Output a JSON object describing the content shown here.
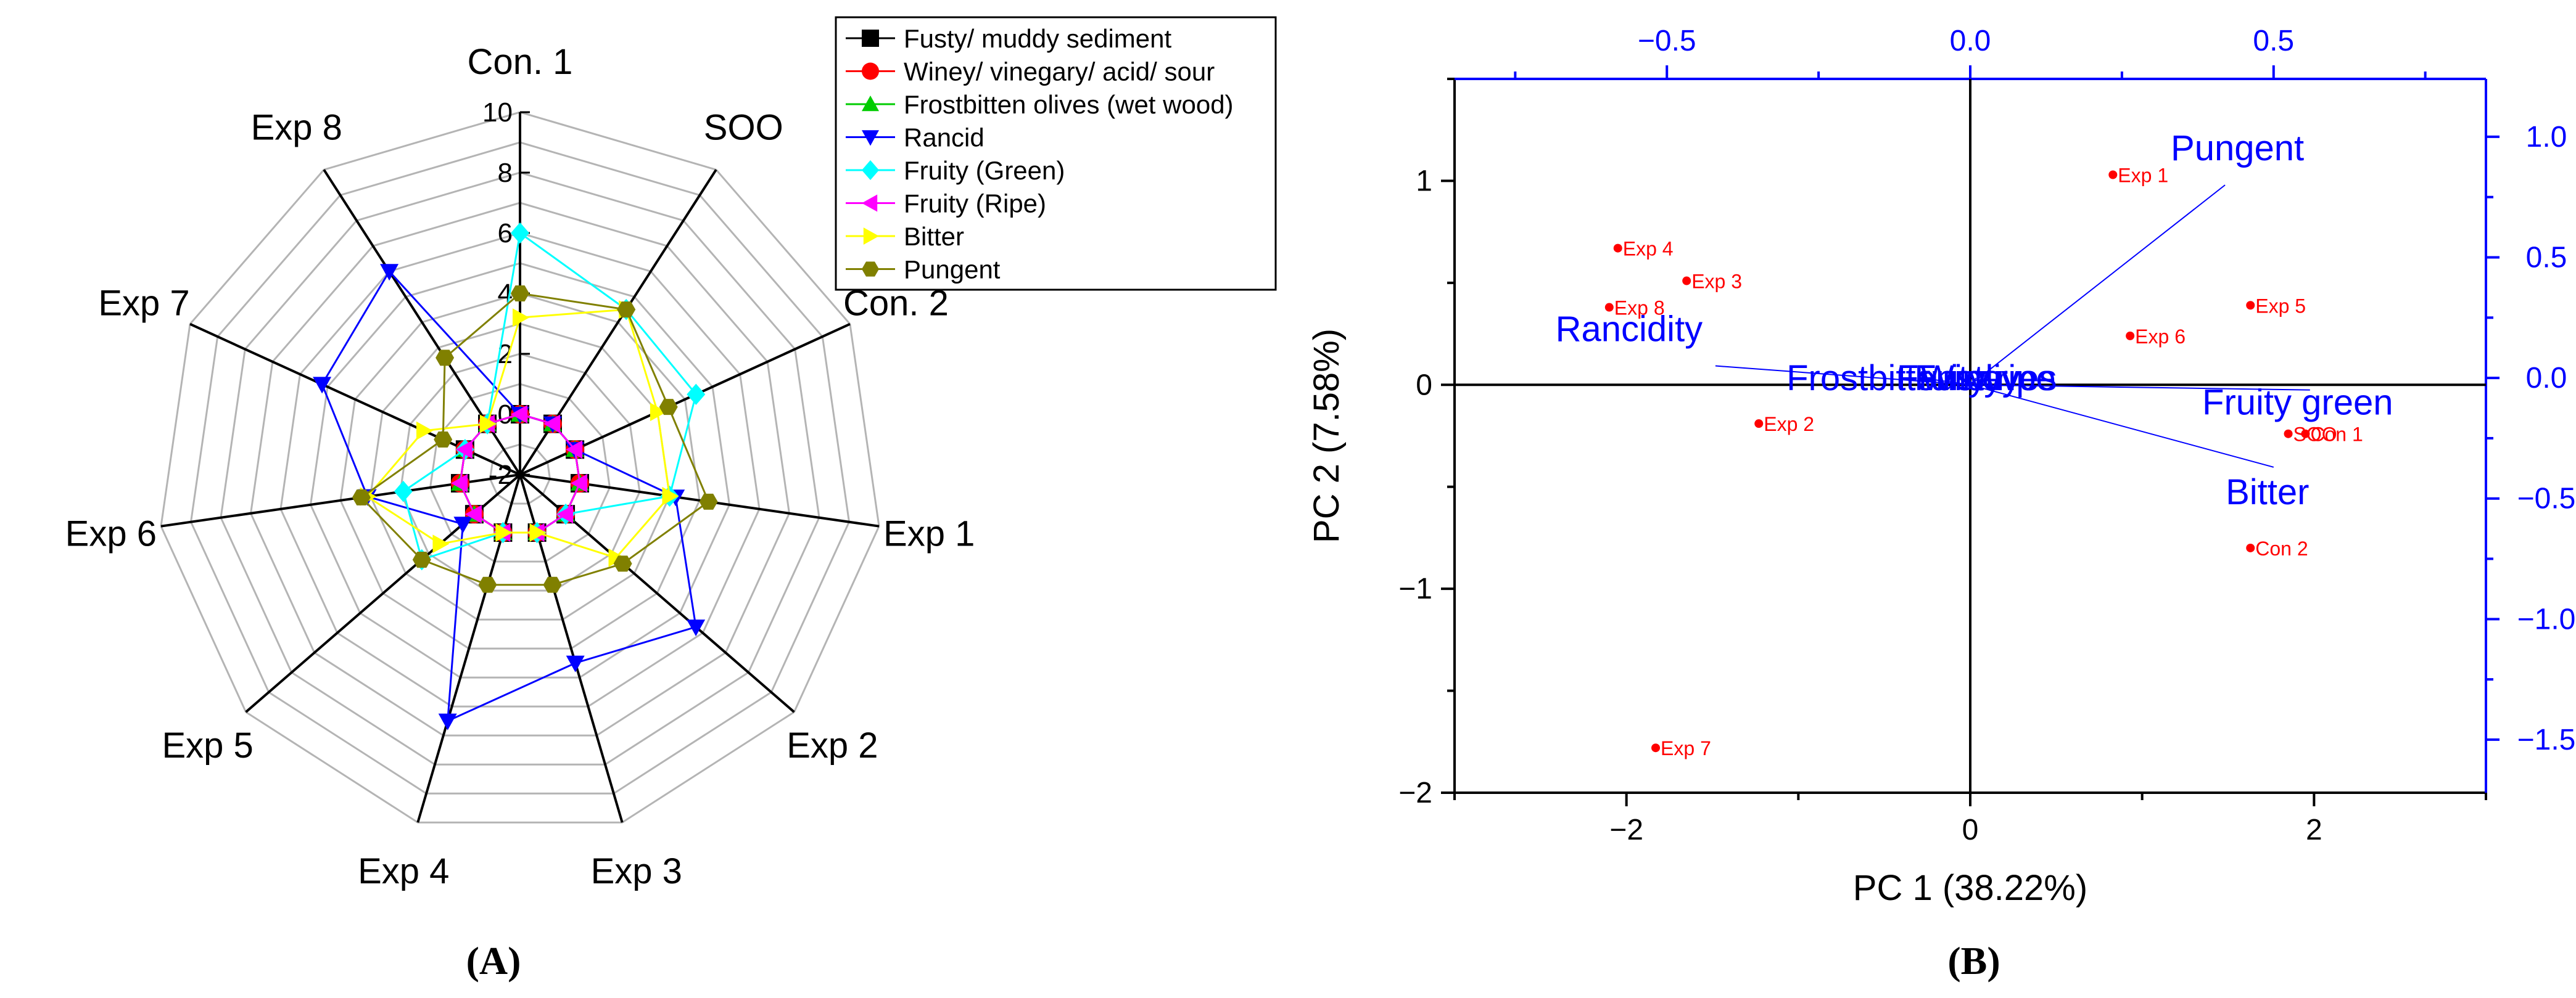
{
  "panel_a": {
    "caption": "(A)",
    "axis_labels": [
      "Con. 1",
      "SOO",
      "Con. 2",
      "Exp 1",
      "Exp 2",
      "Exp 3",
      "Exp 4",
      "Exp 5",
      "Exp 6",
      "Exp 7",
      "Exp 8"
    ],
    "radial_ticks": [
      "-2",
      "0",
      "2",
      "4",
      "6",
      "8",
      "10"
    ]
  },
  "panel_b": {
    "caption": "(B)",
    "xlabel": "PC 1 (38.22%)",
    "ylabel": "PC 2 (7.58%)"
  },
  "chart_data": [
    {
      "type": "radar",
      "title": "",
      "axes": [
        "Con. 1",
        "SOO",
        "Con. 2",
        "Exp 1",
        "Exp 2",
        "Exp 3",
        "Exp 4",
        "Exp 5",
        "Exp 6",
        "Exp 7",
        "Exp 8"
      ],
      "rlim": [
        -2,
        10
      ],
      "rticks": [
        -2,
        0,
        2,
        4,
        6,
        8,
        10
      ],
      "legend_position": "top-right",
      "series": [
        {
          "name": "Fusty/ muddy sediment",
          "color": "#000000",
          "marker": "square",
          "values": [
            0,
            0,
            0,
            0,
            0,
            0,
            0,
            0,
            0,
            0,
            0
          ]
        },
        {
          "name": "Winey/ vinegary/ acid/ sour",
          "color": "#ff0000",
          "marker": "circle",
          "values": [
            0,
            0,
            0,
            0,
            0,
            0,
            0,
            0,
            0,
            0,
            0
          ]
        },
        {
          "name": "Frostbitten olives (wet wood)",
          "color": "#00cc00",
          "marker": "triangle-up",
          "values": [
            0,
            0,
            0,
            0,
            0,
            0,
            0,
            0,
            0,
            0,
            0
          ]
        },
        {
          "name": "Rancid",
          "color": "#0000ff",
          "marker": "triangle-down",
          "values": [
            0,
            0,
            0,
            3.2,
            5.7,
            4.5,
            6.5,
            0.5,
            3.1,
            5.2,
            6.0
          ]
        },
        {
          "name": "Fruity (Green)",
          "color": "#00ffff",
          "marker": "diamond",
          "values": [
            6,
            4.5,
            4.4,
            3.0,
            0,
            0,
            0,
            2.3,
            1.9,
            0,
            0
          ]
        },
        {
          "name": "Fruity (Ripe)",
          "color": "#ff00ff",
          "marker": "triangle-left",
          "values": [
            0,
            0,
            0,
            0,
            0,
            0,
            0,
            0,
            0,
            0,
            0
          ]
        },
        {
          "name": "Bitter",
          "color": "#ffff00",
          "marker": "triangle-right",
          "values": [
            3.2,
            4.5,
            3.0,
            3.0,
            2.2,
            0,
            0,
            1.5,
            3.1,
            1.5,
            0
          ]
        },
        {
          "name": "Pungent",
          "color": "#808000",
          "marker": "hexagon",
          "values": [
            4,
            4.5,
            3.4,
            4.3,
            2.5,
            1.8,
            1.8,
            2.3,
            3.3,
            0.8,
            2.6
          ]
        }
      ]
    },
    {
      "type": "biplot",
      "title": "",
      "xlabel": "PC 1 (38.22%)",
      "ylabel": "PC 2 (7.58%)",
      "xlim": [
        -3,
        3
      ],
      "ylim": [
        -2,
        1.5
      ],
      "xticks": [
        -2,
        0,
        2
      ],
      "yticks": [
        -2,
        -1,
        0,
        1
      ],
      "top_xlim": [
        -0.85,
        0.85
      ],
      "top_xticks": [
        "-0.5",
        "0.0",
        "0.5"
      ],
      "right_ylim": [
        -1.72,
        1.24
      ],
      "right_yticks": [
        "-1.5",
        "-1.0",
        "-0.5",
        "0.0",
        "0.5",
        "1.0"
      ],
      "scores": [
        {
          "label": "Exp 1",
          "x": 0.83,
          "y": 1.03
        },
        {
          "label": "Exp 4",
          "x": -2.05,
          "y": 0.67
        },
        {
          "label": "Exp 3",
          "x": -1.65,
          "y": 0.51
        },
        {
          "label": "Exp 8",
          "x": -2.1,
          "y": 0.38
        },
        {
          "label": "Exp 5",
          "x": 1.63,
          "y": 0.39
        },
        {
          "label": "Exp 6",
          "x": 0.93,
          "y": 0.24
        },
        {
          "label": "Exp 2",
          "x": -1.23,
          "y": -0.19
        },
        {
          "label": "SOO",
          "x": 1.85,
          "y": -0.24
        },
        {
          "label": "Con 1",
          "x": 1.95,
          "y": -0.24
        },
        {
          "label": "Con 2",
          "x": 1.63,
          "y": -0.8
        },
        {
          "label": "Exp 7",
          "x": -1.83,
          "y": -1.78
        }
      ],
      "loadings": [
        {
          "label": "Pungent",
          "x": 0.42,
          "y": 0.8
        },
        {
          "label": "Rancidity",
          "x": -0.42,
          "y": 0.05
        },
        {
          "label": "Fruity green",
          "x": 0.56,
          "y": -0.05
        },
        {
          "label": "Bitter",
          "x": 0.5,
          "y": -0.37
        },
        {
          "label": "Frostbitten olives",
          "x": -0.08,
          "y": 0.0
        },
        {
          "label": "Fusty",
          "x": -0.02,
          "y": 0.0
        },
        {
          "label": "Winey",
          "x": 0.0,
          "y": 0.0
        },
        {
          "label": "Fruity ripe",
          "x": 0.01,
          "y": 0.0
        }
      ]
    }
  ]
}
